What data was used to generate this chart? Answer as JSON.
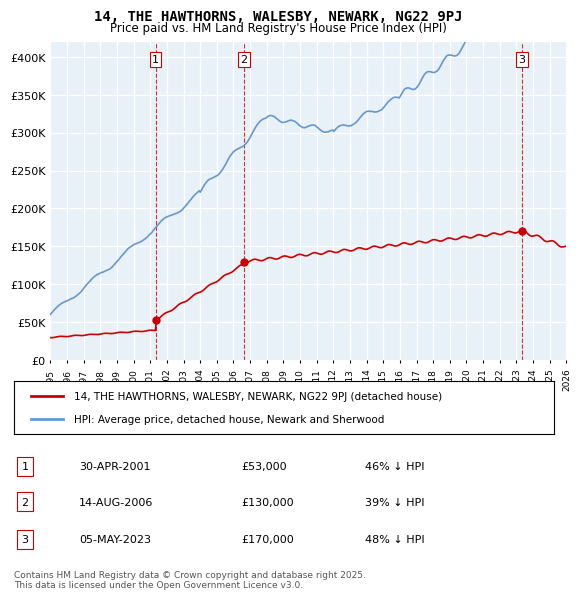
{
  "title": "14, THE HAWTHORNS, WALESBY, NEWARK, NG22 9PJ",
  "subtitle": "Price paid vs. HM Land Registry's House Price Index (HPI)",
  "ylabel": "",
  "background_color": "#ffffff",
  "plot_background": "#e8f0f8",
  "grid_color": "#ffffff",
  "hpi_color": "#6699cc",
  "price_color": "#cc0000",
  "sale_marker_color": "#cc0000",
  "vline_color": "#cc0000",
  "ylim": [
    0,
    420000
  ],
  "yticks": [
    0,
    50000,
    100000,
    150000,
    200000,
    250000,
    300000,
    350000,
    400000
  ],
  "xmin": 1995,
  "xmax": 2026,
  "sales": [
    {
      "label": "1",
      "date_num": 2001.33,
      "price": 53000
    },
    {
      "label": "2",
      "date_num": 2006.62,
      "price": 130000
    },
    {
      "label": "3",
      "date_num": 2023.34,
      "price": 170000
    }
  ],
  "legend_property": "14, THE HAWTHORNS, WALESBY, NEWARK, NG22 9PJ (detached house)",
  "legend_hpi": "HPI: Average price, detached house, Newark and Sherwood",
  "table_rows": [
    {
      "num": "1",
      "date": "30-APR-2001",
      "price": "£53,000",
      "pct": "46% ↓ HPI"
    },
    {
      "num": "2",
      "date": "14-AUG-2006",
      "price": "£130,000",
      "pct": "39% ↓ HPI"
    },
    {
      "num": "3",
      "date": "05-MAY-2023",
      "price": "£170,000",
      "pct": "48% ↓ HPI"
    }
  ],
  "footnote": "Contains HM Land Registry data © Crown copyright and database right 2025.\nThis data is licensed under the Open Government Licence v3.0."
}
